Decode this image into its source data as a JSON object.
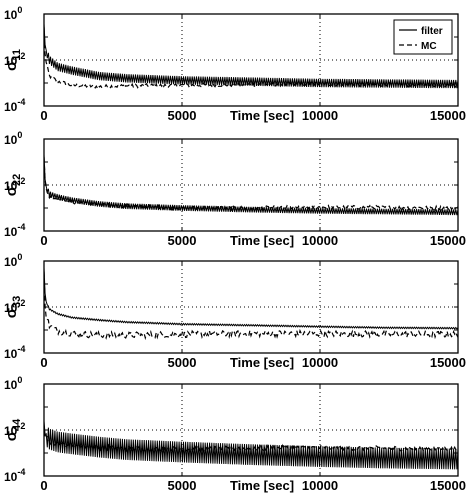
{
  "chart_data": [
    {
      "type": "line",
      "ylabel": "σ",
      "ylabel_sub": "11",
      "xlabel": "Time  [sec]",
      "x_tick_labels": [
        "0",
        "5000",
        "10000",
        "15000"
      ],
      "y_tick_labels": [
        {
          "base": "10",
          "exp": "0"
        },
        {
          "base": "10",
          "exp": "-2"
        },
        {
          "base": "10",
          "exp": "-4"
        }
      ],
      "xlim": [
        0,
        15000
      ],
      "ylim": [
        0.0001,
        1
      ],
      "y_scale": "log",
      "grid": "dotted",
      "legend": "top-right",
      "legend_entries": [
        "filter",
        "MC"
      ],
      "series": [
        {
          "name": "filter",
          "style": "solid",
          "oscillation_decades": 0.18,
          "x": [
            0,
            50,
            200,
            500,
            1000,
            2000,
            3000,
            5000,
            7500,
            10000,
            12500,
            15000
          ],
          "y": [
            0.35,
            0.03,
            0.01,
            0.005,
            0.0035,
            0.002,
            0.0016,
            0.0013,
            0.00115,
            0.001,
            0.00095,
            0.0009
          ]
        },
        {
          "name": "MC",
          "style": "dashed",
          "noise_decades": 0.08,
          "x": [
            0,
            50,
            200,
            500,
            1000,
            2000,
            3000,
            5000,
            7500,
            10000,
            12500,
            15000
          ],
          "y": [
            0.25,
            0.01,
            0.002,
            0.0012,
            0.0008,
            0.0007,
            0.00075,
            0.0008,
            0.00085,
            0.0009,
            0.00085,
            0.0008
          ]
        }
      ]
    },
    {
      "type": "line",
      "ylabel": "σ",
      "ylabel_sub": "22",
      "xlabel": "Time  [sec]",
      "x_tick_labels": [
        "0",
        "5000",
        "10000",
        "15000"
      ],
      "y_tick_labels": [
        {
          "base": "10",
          "exp": "0"
        },
        {
          "base": "10",
          "exp": "-2"
        },
        {
          "base": "10",
          "exp": "-4"
        }
      ],
      "xlim": [
        0,
        15000
      ],
      "ylim": [
        0.0001,
        1
      ],
      "y_scale": "log",
      "grid": "dotted",
      "series": [
        {
          "name": "filter",
          "style": "solid",
          "oscillation_decades": 0.12,
          "x": [
            0,
            50,
            200,
            500,
            1000,
            2000,
            3000,
            5000,
            7500,
            10000,
            12500,
            15000
          ],
          "y": [
            0.2,
            0.01,
            0.004,
            0.003,
            0.0022,
            0.0015,
            0.0012,
            0.001,
            0.00085,
            0.00075,
            0.0007,
            0.00065
          ]
        },
        {
          "name": "MC",
          "style": "dashed",
          "noise_decades": 0.08,
          "x": [
            0,
            50,
            200,
            500,
            1000,
            2000,
            3000,
            5000,
            7500,
            10000,
            12500,
            15000
          ],
          "y": [
            0.15,
            0.008,
            0.003,
            0.0025,
            0.0018,
            0.0014,
            0.0012,
            0.001,
            0.001,
            0.0011,
            0.00105,
            0.001
          ]
        }
      ]
    },
    {
      "type": "line",
      "ylabel": "σ",
      "ylabel_sub": "33",
      "xlabel": "Time  [sec]",
      "x_tick_labels": [
        "0",
        "5000",
        "10000",
        "15000"
      ],
      "y_tick_labels": [
        {
          "base": "10",
          "exp": "0"
        },
        {
          "base": "10",
          "exp": "-2"
        },
        {
          "base": "10",
          "exp": "-4"
        }
      ],
      "xlim": [
        0,
        15000
      ],
      "ylim": [
        0.0001,
        1
      ],
      "y_scale": "log",
      "grid": "dotted",
      "series": [
        {
          "name": "filter",
          "style": "solid",
          "oscillation_decades": 0.03,
          "x": [
            0,
            50,
            200,
            500,
            1000,
            2000,
            3000,
            5000,
            7500,
            10000,
            12500,
            15000
          ],
          "y": [
            0.5,
            0.02,
            0.008,
            0.005,
            0.0035,
            0.0027,
            0.0022,
            0.0018,
            0.0016,
            0.0014,
            0.00125,
            0.0012
          ]
        },
        {
          "name": "MC",
          "style": "dashed",
          "noise_decades": 0.14,
          "x": [
            0,
            50,
            200,
            500,
            1000,
            2000,
            3000,
            5000,
            7500,
            10000,
            12500,
            15000
          ],
          "y": [
            0.3,
            0.006,
            0.0015,
            0.0009,
            0.0007,
            0.0006,
            0.0006,
            0.00065,
            0.0007,
            0.0007,
            0.00065,
            0.00065
          ]
        }
      ]
    },
    {
      "type": "line",
      "ylabel": "σ",
      "ylabel_sub": "44",
      "xlabel": "Time  [sec]",
      "x_tick_labels": [
        "0",
        "5000",
        "10000",
        "15000"
      ],
      "y_tick_labels": [
        {
          "base": "10",
          "exp": "0"
        },
        {
          "base": "10",
          "exp": "-2"
        },
        {
          "base": "10",
          "exp": "-4"
        }
      ],
      "xlim": [
        0,
        15000
      ],
      "ylim": [
        0.0001,
        1
      ],
      "y_scale": "log",
      "grid": "dotted",
      "series": [
        {
          "name": "filter",
          "style": "solid",
          "oscillation_decades": 0.45,
          "x": [
            0,
            50,
            200,
            500,
            1000,
            2000,
            3000,
            5000,
            7500,
            10000,
            12500,
            15000
          ],
          "y": [
            0.02,
            0.006,
            0.004,
            0.003,
            0.0025,
            0.0018,
            0.0014,
            0.0011,
            0.00085,
            0.0007,
            0.0006,
            0.00055
          ]
        },
        {
          "name": "MC",
          "style": "dashed",
          "noise_decades": 0.1,
          "x": [
            0,
            50,
            200,
            500,
            1000,
            2000,
            3000,
            5000,
            7500,
            10000,
            12500,
            15000
          ],
          "y": [
            0.015,
            0.005,
            0.003,
            0.0025,
            0.0022,
            0.0018,
            0.0016,
            0.0015,
            0.0016,
            0.0017,
            0.0016,
            0.0015
          ]
        }
      ]
    }
  ]
}
